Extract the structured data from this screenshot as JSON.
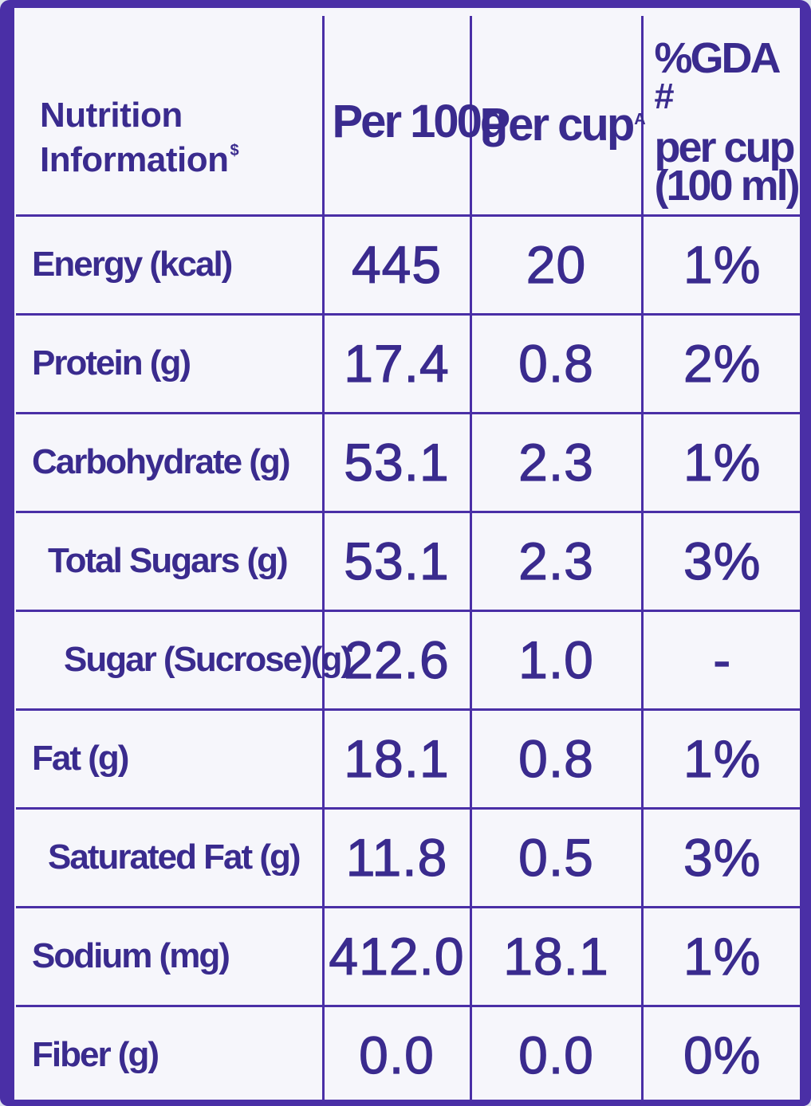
{
  "header": {
    "label_line1": "Nutrition",
    "label_line2": "Information",
    "label_mark": "$",
    "per_100g": "Per 100g",
    "per_cup": "Per cup",
    "per_cup_mark": "A",
    "gda_line1": "%GDA",
    "gda_mark": "#",
    "gda_line2": "per cup",
    "gda_line3": "(100 ml)"
  },
  "rows": [
    {
      "label": "Energy (kcal)",
      "per_100g": "445",
      "per_cup": "20",
      "gda": "1%"
    },
    {
      "label": "Protein (g)",
      "per_100g": "17.4",
      "per_cup": "0.8",
      "gda": "2%"
    },
    {
      "label": "Carbohydrate (g)",
      "per_100g": "53.1",
      "per_cup": "2.3",
      "gda": "1%"
    },
    {
      "label": "Total Sugars (g)",
      "per_100g": "53.1",
      "per_cup": "2.3",
      "gda": "3%"
    },
    {
      "label": "Sugar (Sucrose)(g)",
      "per_100g": "22.6",
      "per_cup": "1.0",
      "gda": "-"
    },
    {
      "label": "Fat (g)",
      "per_100g": "18.1",
      "per_cup": "0.8",
      "gda": "1%"
    },
    {
      "label": "Saturated Fat (g)",
      "per_100g": "11.8",
      "per_cup": "0.5",
      "gda": "3%"
    },
    {
      "label": "Sodium (mg)",
      "per_100g": "412.0",
      "per_cup": "18.1",
      "gda": "1%"
    },
    {
      "label": "Fiber (g)",
      "per_100g": "0.0",
      "per_cup": "0.0",
      "gda": "0%"
    }
  ],
  "colors": {
    "ink": "#3a2b8e",
    "border": "#4a2fa6",
    "paper": "#f6f6fb"
  }
}
